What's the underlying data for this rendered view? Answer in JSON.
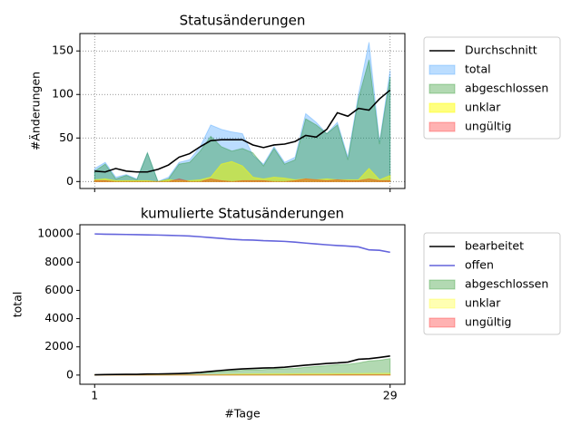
{
  "chart_data": [
    {
      "type": "area",
      "title": "Statusänderungen",
      "ylabel": "#Änderungen",
      "x": [
        1,
        2,
        3,
        4,
        5,
        6,
        7,
        8,
        9,
        10,
        11,
        12,
        13,
        14,
        15,
        16,
        17,
        18,
        19,
        20,
        21,
        22,
        23,
        24,
        25,
        26,
        27,
        28,
        29
      ],
      "xlim": [
        -0.4,
        30.4
      ],
      "xticks": [
        1,
        29
      ],
      "ylim": [
        -8,
        170
      ],
      "yticks": [
        0,
        50,
        100,
        150
      ],
      "grid": true,
      "legend": "right",
      "series": [
        {
          "name": "Durchschnitt",
          "kind": "line",
          "color": "#000000",
          "values": [
            12,
            11,
            15,
            12,
            11,
            11,
            14,
            19,
            28,
            32,
            40,
            47,
            48,
            48,
            48,
            42,
            39,
            42,
            43,
            46,
            53,
            51,
            60,
            79,
            75,
            84,
            82,
            95,
            105
          ]
        },
        {
          "name": "total",
          "kind": "area",
          "color": "#1e90ff4d",
          "values": [
            15,
            22,
            5,
            8,
            3,
            33,
            0,
            5,
            22,
            25,
            40,
            65,
            60,
            57,
            55,
            30,
            20,
            40,
            22,
            28,
            78,
            68,
            55,
            68,
            28,
            100,
            160,
            45,
            128
          ]
        },
        {
          "name": "abgeschlossen",
          "kind": "area",
          "color": "#0080004d",
          "values": [
            12,
            20,
            3,
            7,
            2,
            33,
            0,
            3,
            20,
            22,
            35,
            52,
            40,
            35,
            38,
            33,
            18,
            38,
            20,
            25,
            72,
            65,
            55,
            65,
            25,
            95,
            140,
            43,
            120
          ]
        },
        {
          "name": "unklar",
          "kind": "area",
          "color": "#ffff0080",
          "values": [
            2,
            3,
            1,
            1,
            1,
            1,
            0,
            2,
            1,
            1,
            2,
            5,
            20,
            23,
            18,
            5,
            3,
            5,
            4,
            2,
            3,
            2,
            3,
            2,
            2,
            2,
            15,
            2,
            7
          ]
        },
        {
          "name": "ungültig",
          "kind": "area",
          "color": "#ff00004d",
          "values": [
            1,
            1,
            0,
            0,
            0,
            0,
            0,
            0,
            3,
            0,
            0,
            3,
            1,
            0,
            1,
            1,
            1,
            0,
            0,
            1,
            3,
            2,
            1,
            2,
            1,
            1,
            3,
            1,
            1
          ]
        }
      ]
    },
    {
      "type": "area",
      "title": "kumulierte Statusänderungen",
      "ylabel": "total",
      "xlabel": "#Tage",
      "x": [
        1,
        2,
        3,
        4,
        5,
        6,
        7,
        8,
        9,
        10,
        11,
        12,
        13,
        14,
        15,
        16,
        17,
        18,
        19,
        20,
        21,
        22,
        23,
        24,
        25,
        26,
        27,
        28,
        29
      ],
      "xlim": [
        -0.4,
        30.4
      ],
      "xticks": [
        1,
        29
      ],
      "ylim": [
        -650,
        10650
      ],
      "yticks": [
        0,
        2000,
        4000,
        6000,
        8000,
        10000
      ],
      "grid": false,
      "legend": "right",
      "series": [
        {
          "name": "bearbeitet",
          "kind": "line",
          "color": "#000000",
          "values": [
            20,
            35,
            45,
            50,
            55,
            75,
            80,
            90,
            110,
            140,
            190,
            260,
            330,
            390,
            440,
            470,
            500,
            520,
            560,
            630,
            700,
            760,
            820,
            860,
            920,
            1120,
            1160,
            1250,
            1350
          ]
        },
        {
          "name": "offen",
          "kind": "line",
          "color": "#6464dc",
          "values": [
            10000,
            9980,
            9970,
            9960,
            9950,
            9930,
            9920,
            9900,
            9880,
            9850,
            9800,
            9740,
            9680,
            9620,
            9580,
            9560,
            9520,
            9500,
            9470,
            9420,
            9350,
            9290,
            9230,
            9180,
            9140,
            9080,
            8870,
            8840,
            8700
          ]
        },
        {
          "name": "abgeschlossen",
          "kind": "area",
          "color": "#0080004d",
          "values": [
            15,
            30,
            40,
            45,
            50,
            70,
            75,
            80,
            100,
            125,
            160,
            215,
            260,
            300,
            340,
            370,
            390,
            430,
            450,
            475,
            550,
            610,
            670,
            730,
            760,
            860,
            1000,
            1050,
            1170
          ]
        },
        {
          "name": "unklar",
          "kind": "area",
          "color": "#ffff004d",
          "values": [
            2,
            5,
            6,
            7,
            8,
            9,
            9,
            11,
            12,
            13,
            15,
            20,
            40,
            63,
            81,
            86,
            89,
            94,
            98,
            100,
            103,
            105,
            108,
            110,
            112,
            114,
            129,
            131,
            138
          ]
        },
        {
          "name": "ungültig",
          "kind": "area",
          "color": "#ff00004d",
          "values": [
            1,
            2,
            2,
            2,
            2,
            2,
            2,
            2,
            5,
            5,
            5,
            8,
            9,
            9,
            10,
            11,
            12,
            12,
            12,
            13,
            16,
            18,
            19,
            21,
            22,
            23,
            26,
            27,
            28
          ]
        }
      ]
    }
  ]
}
